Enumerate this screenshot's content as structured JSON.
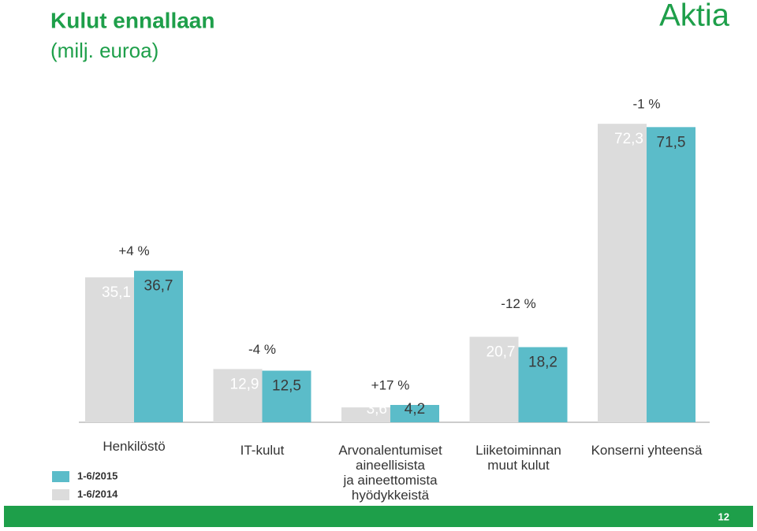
{
  "chart_data": {
    "type": "bar",
    "title": "Kulut ennallaan",
    "subtitle": "(milj. euroa)",
    "logo": "Aktia",
    "page_number": "12",
    "categories": [
      "Henkilöstö",
      "IT-kulut",
      "Arvonalentumiset\naineellisista\nja aineettomista\nhyödykkeistä",
      "Liiketoiminnan\nmuut kulut",
      "Konserni yhteensä"
    ],
    "series": [
      {
        "name": "1-6/2015",
        "color": "#5bbcc9",
        "values": [
          36.7,
          12.5,
          4.2,
          18.2,
          71.5
        ],
        "value_labels": [
          "36,7",
          "12,5",
          "4,2",
          "18,2",
          "71,5"
        ]
      },
      {
        "name": "1-6/2014",
        "color": "#dcdcdc",
        "values": [
          35.1,
          12.9,
          3.6,
          20.7,
          72.3
        ],
        "value_labels": [
          "35,1",
          "12,9",
          "3,6",
          "20,7",
          "72,3"
        ]
      }
    ],
    "annotations": [
      "+4 %",
      "-4 %",
      "+17 %",
      "-12 %",
      "-1 %"
    ]
  }
}
